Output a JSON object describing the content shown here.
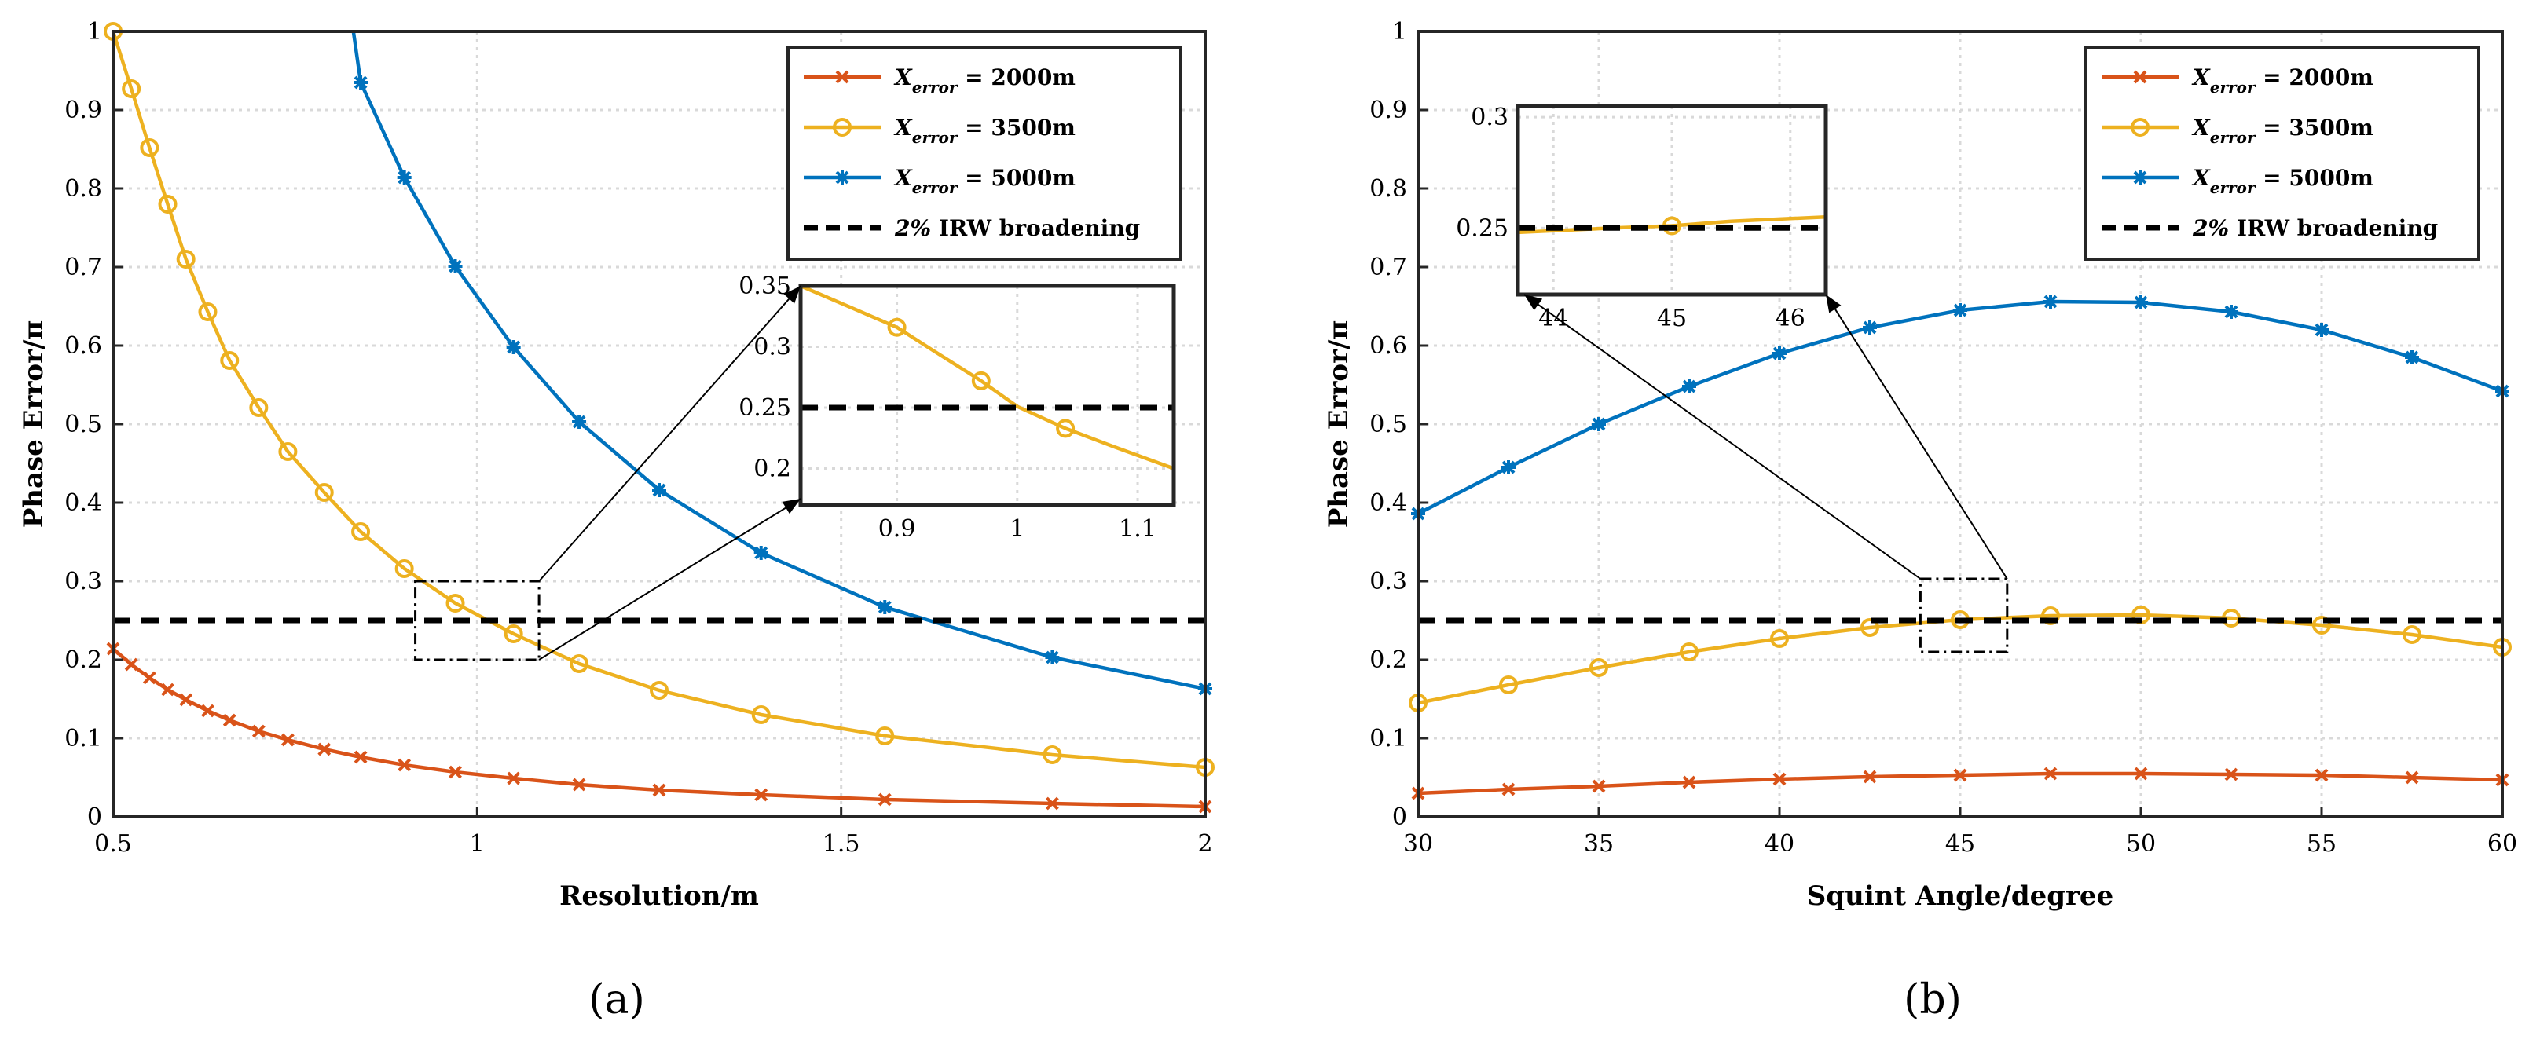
{
  "colors": {
    "s2000": "#D95319",
    "s3500": "#EDB120",
    "s5000": "#0072BD",
    "threshold": "#000000"
  },
  "chart_data": [
    {
      "type": "line",
      "subplot_label": "(a)",
      "xlabel": "Resolution/m",
      "ylabel": "Phase Error/π",
      "xlim": [
        0.5,
        2
      ],
      "ylim": [
        0,
        1
      ],
      "xticks": [
        "0.5",
        "1",
        "1.5",
        "2"
      ],
      "yticks": [
        "0",
        "0.1",
        "0.2",
        "0.3",
        "0.4",
        "0.5",
        "0.6",
        "0.7",
        "0.8",
        "0.9",
        "1"
      ],
      "series": [
        {
          "name": "X_error = 2000m",
          "marker": "x",
          "x": [
            0.5,
            0.525,
            0.55,
            0.575,
            0.6,
            0.63,
            0.66,
            0.7,
            0.74,
            0.79,
            0.84,
            0.9,
            0.97,
            1.05,
            1.14,
            1.25,
            1.39,
            1.56,
            1.79,
            2.0
          ],
          "y": [
            0.214,
            0.194,
            0.177,
            0.162,
            0.149,
            0.135,
            0.123,
            0.109,
            0.098,
            0.086,
            0.076,
            0.066,
            0.057,
            0.049,
            0.041,
            0.034,
            0.028,
            0.022,
            0.017,
            0.013
          ]
        },
        {
          "name": "X_error = 3500m",
          "marker": "o",
          "x": [
            0.5,
            0.525,
            0.55,
            0.575,
            0.6,
            0.63,
            0.66,
            0.7,
            0.74,
            0.79,
            0.84,
            0.9,
            0.97,
            1.05,
            1.14,
            1.25,
            1.39,
            1.56,
            1.79,
            2.0
          ],
          "y": [
            1.0,
            0.927,
            0.852,
            0.78,
            0.71,
            0.643,
            0.581,
            0.521,
            0.465,
            0.413,
            0.363,
            0.316,
            0.272,
            0.233,
            0.195,
            0.161,
            0.13,
            0.103,
            0.079,
            0.063
          ]
        },
        {
          "name": "X_error = 5000m",
          "marker": "*",
          "x": [
            0.83,
            0.84,
            0.9,
            0.97,
            1.05,
            1.14,
            1.25,
            1.39,
            1.56,
            1.79,
            2.0
          ],
          "y": [
            1.0,
            0.935,
            0.814,
            0.701,
            0.598,
            0.503,
            0.416,
            0.336,
            0.267,
            0.203,
            0.163
          ]
        },
        {
          "name": "2% IRW broadening",
          "marker": "none",
          "dashed": true,
          "x": [
            0.5,
            2.0
          ],
          "y": [
            0.25,
            0.25
          ]
        }
      ],
      "inset": {
        "xlim": [
          0.82,
          1.13
        ],
        "ylim": [
          0.17,
          0.35
        ],
        "xticks": [
          "0.9",
          "1",
          "1.1"
        ],
        "yticks": [
          "0.2",
          "0.25",
          "0.3",
          "0.35"
        ],
        "series": [
          {
            "ref": 1,
            "x": [
              0.82,
              0.86,
              0.9,
              0.93,
              0.97,
              1.0,
              1.04,
              1.08,
              1.13
            ],
            "y": [
              0.35,
              0.333,
              0.316,
              0.297,
              0.272,
              0.251,
              0.233,
              0.218,
              0.2
            ],
            "markers": [
              0.9,
              0.97,
              1.04
            ]
          },
          {
            "ref": 3,
            "x": [
              0.82,
              1.13
            ],
            "y": [
              0.25,
              0.25
            ]
          }
        ]
      }
    },
    {
      "type": "line",
      "subplot_label": "(b)",
      "xlabel": "Squint Angle/degree",
      "ylabel": "Phase Error/π",
      "xlim": [
        30,
        60
      ],
      "ylim": [
        0,
        1
      ],
      "xticks": [
        "30",
        "35",
        "40",
        "45",
        "50",
        "55",
        "60"
      ],
      "yticks": [
        "0",
        "0.1",
        "0.2",
        "0.3",
        "0.4",
        "0.5",
        "0.6",
        "0.7",
        "0.8",
        "0.9",
        "1"
      ],
      "series": [
        {
          "name": "X_error = 2000m",
          "marker": "x",
          "x": [
            30,
            32.5,
            35,
            37.5,
            40,
            42.5,
            45,
            47.5,
            50,
            52.5,
            55,
            57.5,
            60
          ],
          "y": [
            0.03,
            0.035,
            0.039,
            0.044,
            0.048,
            0.051,
            0.053,
            0.055,
            0.055,
            0.054,
            0.053,
            0.05,
            0.047
          ]
        },
        {
          "name": "X_error = 3500m",
          "marker": "o",
          "x": [
            30,
            32.5,
            35,
            37.5,
            40,
            42.5,
            45,
            47.5,
            50,
            52.5,
            55,
            57.5,
            60
          ],
          "y": [
            0.145,
            0.168,
            0.19,
            0.21,
            0.227,
            0.241,
            0.251,
            0.256,
            0.257,
            0.253,
            0.244,
            0.232,
            0.216
          ]
        },
        {
          "name": "X_error = 5000m",
          "marker": "*",
          "x": [
            30,
            32.5,
            35,
            37.5,
            40,
            42.5,
            45,
            47.5,
            50,
            52.5,
            55,
            57.5,
            60
          ],
          "y": [
            0.386,
            0.445,
            0.5,
            0.548,
            0.59,
            0.623,
            0.645,
            0.656,
            0.655,
            0.643,
            0.62,
            0.585,
            0.542
          ]
        },
        {
          "name": "2% IRW broadening",
          "marker": "none",
          "dashed": true,
          "x": [
            30,
            60
          ],
          "y": [
            0.25,
            0.25
          ]
        }
      ],
      "inset": {
        "xlim": [
          43.7,
          46.3
        ],
        "ylim": [
          0.22,
          0.305
        ],
        "xticks": [
          "44",
          "45",
          "46"
        ],
        "yticks": [
          "0.25",
          "0.3"
        ],
        "series": [
          {
            "ref": 1,
            "x": [
              43.7,
              44.5,
              45,
              45.5,
              46.3
            ],
            "y": [
              0.248,
              0.25,
              0.251,
              0.253,
              0.255
            ],
            "markers": [
              45
            ]
          },
          {
            "ref": 3,
            "x": [
              43.7,
              46.3
            ],
            "y": [
              0.25,
              0.25
            ]
          }
        ]
      }
    }
  ]
}
